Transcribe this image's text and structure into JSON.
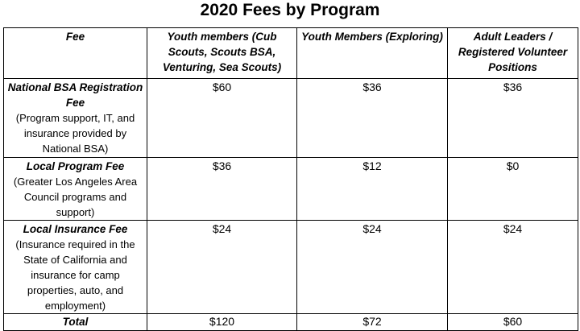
{
  "title": "2020 Fees by Program",
  "columns": [
    "Fee",
    "Youth members (Cub Scouts, Scouts BSA, Venturing, Sea Scouts)",
    "Youth Members (Exploring)",
    "Adult Leaders / Registered Volunteer Positions"
  ],
  "rows": [
    {
      "name": "National BSA Registration Fee",
      "desc": "(Program support, IT, and insurance provided by National BSA)",
      "values": [
        "$60",
        "$36",
        "$36"
      ]
    },
    {
      "name": "Local Program Fee",
      "desc": "(Greater Los Angeles Area Council programs and support)",
      "values": [
        "$36",
        "$12",
        "$0"
      ]
    },
    {
      "name": "Local Insurance Fee",
      "desc": "(Insurance required in the State of California and insurance for camp properties, auto, and employment)",
      "values": [
        "$24",
        "$24",
        "$24"
      ]
    }
  ],
  "total": {
    "label": "Total",
    "values": [
      "$120",
      "$72",
      "$60"
    ]
  }
}
